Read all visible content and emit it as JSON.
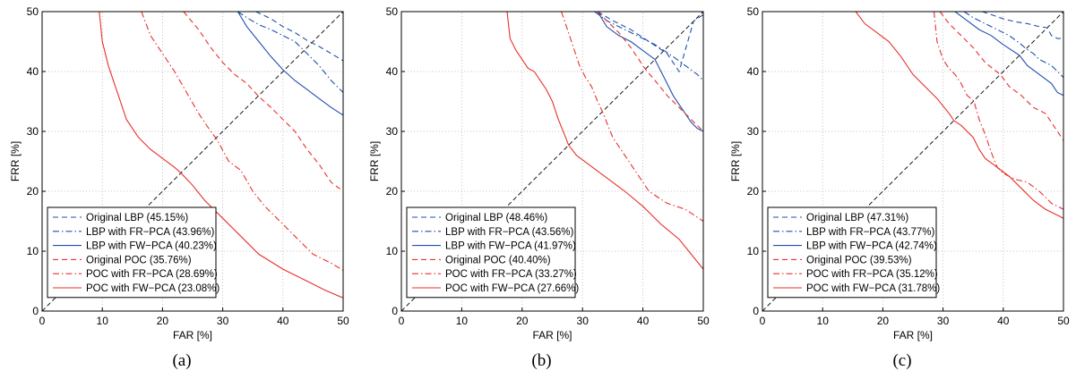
{
  "chart_data": [
    {
      "type": "line",
      "caption": "(a)",
      "xlabel": "FAR [%]",
      "ylabel": "FRR [%]",
      "xlim": [
        0,
        50
      ],
      "ylim": [
        0,
        50
      ],
      "xticks": [
        0,
        10,
        20,
        30,
        40,
        50
      ],
      "yticks": [
        0,
        10,
        20,
        30,
        40,
        50
      ],
      "grid": true,
      "legend_position": "bottom-left",
      "series": [
        {
          "name": "Original LBP (45.15%)",
          "color": "#1f4fae",
          "dash": "dashed",
          "x": [
            35.5,
            38,
            40,
            42,
            44,
            46,
            48,
            50
          ],
          "y": [
            50,
            48.8,
            47.5,
            46.5,
            45.2,
            44.2,
            43,
            41.8
          ]
        },
        {
          "name": "LBP with FR−PCA (43.96%)",
          "color": "#1f4fae",
          "dash": "dashdot",
          "x": [
            32.5,
            34,
            36,
            38,
            40,
            42,
            44,
            46,
            48,
            50
          ],
          "y": [
            50,
            49,
            47.8,
            47,
            46,
            45,
            43,
            41,
            38.5,
            36.5
          ]
        },
        {
          "name": "LBP with FW−PCA (40.23%)",
          "color": "#1f4fae",
          "dash": "solid",
          "x": [
            32.5,
            34,
            36,
            38,
            40,
            42,
            44,
            46,
            48,
            50
          ],
          "y": [
            50,
            47.5,
            45,
            42.5,
            40.3,
            38.5,
            37,
            35.5,
            34,
            32.7
          ]
        },
        {
          "name": "Original POC (35.76%)",
          "color": "#e8302a",
          "dash": "dashed",
          "x": [
            23.5,
            26,
            28,
            30,
            32,
            34,
            36,
            38,
            40,
            42,
            44,
            46,
            48,
            50
          ],
          "y": [
            50,
            47,
            44,
            41.5,
            39.5,
            38,
            35.8,
            34,
            32,
            30,
            27,
            24.5,
            21.5,
            20
          ]
        },
        {
          "name": "POC with FR−PCA (28.69%)",
          "color": "#e8302a",
          "dash": "dashdot",
          "x": [
            16.5,
            18,
            20,
            22,
            24,
            26,
            28,
            29,
            31,
            33,
            35,
            37,
            39,
            42,
            45,
            48,
            50
          ],
          "y": [
            50,
            46,
            43,
            40,
            36.5,
            33,
            30,
            28.7,
            25,
            23.5,
            20,
            17.5,
            15.5,
            12.5,
            9.5,
            8,
            6.8
          ]
        },
        {
          "name": "POC with FW−PCA (23.08%)",
          "color": "#e8302a",
          "dash": "solid",
          "x": [
            9.5,
            10,
            11,
            12,
            13,
            14,
            16,
            18,
            20,
            22,
            23,
            25,
            27,
            30,
            33,
            36,
            40,
            44,
            47,
            50
          ],
          "y": [
            50,
            45,
            41,
            38,
            35,
            32,
            29,
            27,
            25.5,
            24,
            23.1,
            21,
            18.5,
            15.5,
            12.5,
            9.5,
            7,
            5,
            3.5,
            2.2
          ]
        }
      ]
    },
    {
      "type": "line",
      "caption": "(b)",
      "xlabel": "FAR [%]",
      "ylabel": "FRR [%]",
      "xlim": [
        0,
        50
      ],
      "ylim": [
        0,
        50
      ],
      "xticks": [
        0,
        10,
        20,
        30,
        40,
        50
      ],
      "yticks": [
        0,
        10,
        20,
        30,
        40,
        50
      ],
      "grid": true,
      "legend_position": "bottom-left",
      "series": [
        {
          "name": "Original LBP (48.46%)",
          "color": "#1f4fae",
          "dash": "dashed",
          "x": [
            32.5,
            35,
            38,
            41,
            44,
            46,
            48.4,
            50
          ],
          "y": [
            50,
            48.5,
            47,
            45,
            43,
            40,
            48.4,
            49.5
          ]
        },
        {
          "name": "LBP with FR−PCA (43.56%)",
          "color": "#1f4fae",
          "dash": "dashdot",
          "x": [
            32,
            34,
            36,
            38,
            40,
            42,
            43.5,
            45,
            47,
            49,
            50
          ],
          "y": [
            50,
            48.5,
            47.5,
            46.5,
            45.5,
            44.5,
            43.5,
            42.5,
            41,
            39.5,
            38.5
          ]
        },
        {
          "name": "LBP with FW−PCA (41.97%)",
          "color": "#1f4fae",
          "dash": "solid",
          "x": [
            32.5,
            34,
            36,
            38,
            40,
            42,
            43,
            44,
            45,
            46,
            47,
            48,
            49,
            50
          ],
          "y": [
            50,
            47.5,
            46,
            45,
            43.5,
            42,
            40,
            38,
            36,
            34.5,
            33,
            31.5,
            30.5,
            30
          ]
        },
        {
          "name": "Original POC (40.40%)",
          "color": "#e8302a",
          "dash": "dashed",
          "x": [
            32.5,
            34,
            36,
            38,
            40.4,
            42,
            44,
            46,
            48,
            50
          ],
          "y": [
            50,
            48.5,
            46.5,
            44,
            40.4,
            38.5,
            36,
            34,
            32,
            30
          ]
        },
        {
          "name": "POC with FR−PCA (33.27%)",
          "color": "#e8302a",
          "dash": "dashdot",
          "x": [
            26.5,
            27.5,
            28.5,
            29.5,
            30.5,
            31.5,
            32.5,
            33.3,
            35,
            37,
            39,
            41,
            44,
            47,
            50
          ],
          "y": [
            50,
            47,
            44,
            41,
            39,
            37.5,
            35,
            33.3,
            29,
            26,
            23,
            20,
            18,
            17,
            15
          ]
        },
        {
          "name": "POC with FW−PCA (27.66%)",
          "color": "#e8302a",
          "dash": "solid",
          "x": [
            17.5,
            18,
            19,
            20,
            21,
            22,
            23,
            24,
            25,
            26,
            27,
            27.7,
            29,
            31,
            33,
            35,
            37,
            40,
            43,
            46,
            48,
            50
          ],
          "y": [
            50,
            45.5,
            43.5,
            42,
            40.5,
            40,
            38.5,
            37,
            35,
            32,
            29.5,
            27.7,
            26,
            24.5,
            23,
            21.5,
            20,
            17.5,
            14.5,
            12,
            9.5,
            7
          ]
        }
      ]
    },
    {
      "type": "line",
      "caption": "(c)",
      "xlabel": "FAR [%]",
      "ylabel": "FRR [%]",
      "xlim": [
        0,
        50
      ],
      "ylim": [
        0,
        50
      ],
      "xticks": [
        0,
        10,
        20,
        30,
        40,
        50
      ],
      "yticks": [
        0,
        10,
        20,
        30,
        40,
        50
      ],
      "grid": true,
      "legend_position": "bottom-left",
      "series": [
        {
          "name": "Original LBP (47.31%)",
          "color": "#1f4fae",
          "dash": "dashed",
          "x": [
            36.5,
            38,
            40,
            42,
            44,
            46,
            47.3,
            48,
            49,
            50
          ],
          "y": [
            50,
            49.5,
            48.8,
            48.3,
            48,
            47.5,
            47.3,
            46,
            45.5,
            45.5
          ]
        },
        {
          "name": "LBP with FR−PCA (43.77%)",
          "color": "#1f4fae",
          "dash": "dashdot",
          "x": [
            33.5,
            35,
            37,
            39,
            41,
            43,
            43.8,
            45,
            46,
            47,
            48,
            49,
            50
          ],
          "y": [
            50,
            49,
            48,
            47,
            46,
            44.5,
            43.8,
            43,
            42,
            41.5,
            41,
            40,
            39
          ]
        },
        {
          "name": "LBP with FW−PCA (42.74%)",
          "color": "#1f4fae",
          "dash": "solid",
          "x": [
            32,
            34,
            36,
            38,
            40,
            42.7,
            44,
            46,
            48,
            49,
            50
          ],
          "y": [
            50,
            48.5,
            47,
            46,
            44.5,
            42.7,
            41,
            39.5,
            38,
            36.5,
            36
          ]
        },
        {
          "name": "Original POC (39.53%)",
          "color": "#e8302a",
          "dash": "dashed",
          "x": [
            29.5,
            31,
            33,
            35,
            37,
            39.5,
            41,
            43,
            45,
            47,
            49,
            50
          ],
          "y": [
            50,
            48,
            46,
            44,
            41.5,
            39.5,
            37.5,
            36,
            34,
            33,
            30,
            28.5
          ]
        },
        {
          "name": "POC with FR−PCA (35.12%)",
          "color": "#e8302a",
          "dash": "dashdot",
          "x": [
            28.5,
            29,
            30,
            31,
            32,
            33,
            34,
            35.1,
            36,
            37,
            38,
            39,
            40,
            42,
            44,
            46,
            48,
            50
          ],
          "y": [
            50,
            45,
            42,
            40.5,
            39.5,
            38,
            36,
            35.1,
            32,
            29.5,
            26.5,
            24,
            23,
            22,
            21.5,
            20,
            18,
            17
          ]
        },
        {
          "name": "POC with FW−PCA (31.78%)",
          "color": "#e8302a",
          "dash": "solid",
          "x": [
            15.5,
            17,
            19,
            21,
            23,
            25,
            27,
            29,
            31,
            31.8,
            33,
            35,
            36,
            37,
            39,
            41,
            43,
            45,
            47,
            49,
            50
          ],
          "y": [
            50,
            48,
            46.5,
            45,
            42.5,
            39.5,
            37.5,
            35.5,
            33,
            31.8,
            31,
            29,
            27,
            25.5,
            24,
            22.5,
            20.5,
            18.5,
            17,
            16,
            15.5
          ]
        }
      ]
    }
  ]
}
